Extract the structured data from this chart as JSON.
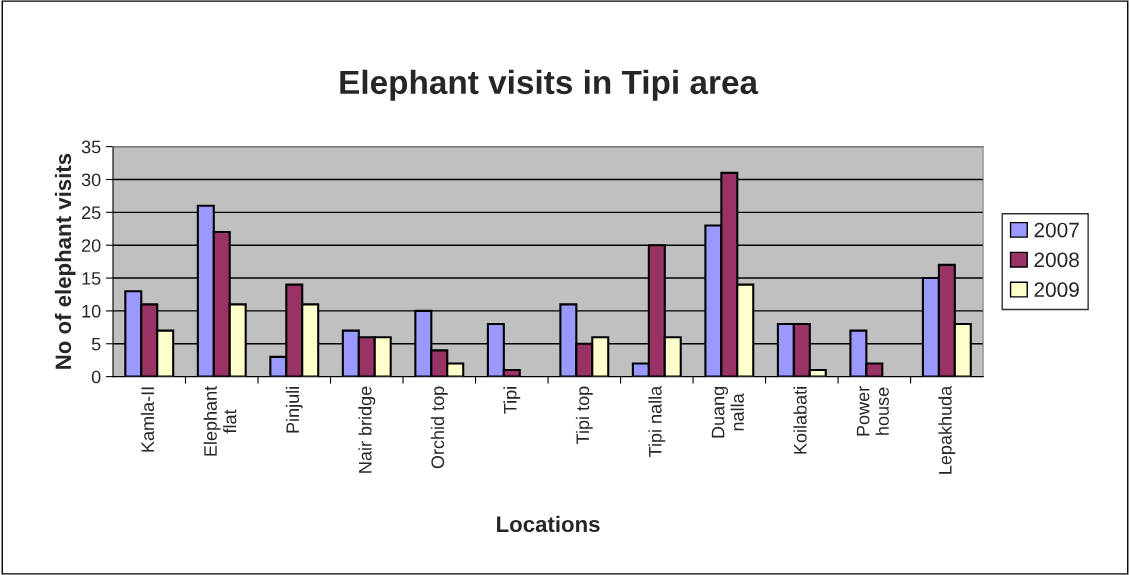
{
  "chart_data": {
    "type": "bar",
    "title": "Elephant visits in Tipi area",
    "xlabel": "Locations",
    "ylabel": "No of elephant visits",
    "categories": [
      "Kamla-II",
      "Elephant\nflat",
      "Pinjuli",
      "Nair bridge",
      "Orchid top",
      "Tipi",
      "Tipi top",
      "Tipi nalla",
      "Duang\nnalla",
      "Koilabati",
      "Power\nhouse",
      "Lepakhuda"
    ],
    "series": [
      {
        "name": "2007",
        "color": "#9999ff",
        "values": [
          13,
          26,
          3,
          7,
          10,
          8,
          11,
          2,
          23,
          8,
          7,
          15
        ]
      },
      {
        "name": "2008",
        "color": "#993366",
        "values": [
          11,
          22,
          14,
          6,
          4,
          1,
          5,
          20,
          31,
          8,
          2,
          17
        ]
      },
      {
        "name": "2009",
        "color": "#ffffcc",
        "values": [
          7,
          11,
          11,
          6,
          2,
          null,
          6,
          6,
          14,
          1,
          null,
          8
        ]
      }
    ],
    "ylim": [
      0,
      35
    ],
    "yticks": [
      0,
      5,
      10,
      15,
      20,
      25,
      30,
      35
    ],
    "grid": "y",
    "legend": "right"
  }
}
